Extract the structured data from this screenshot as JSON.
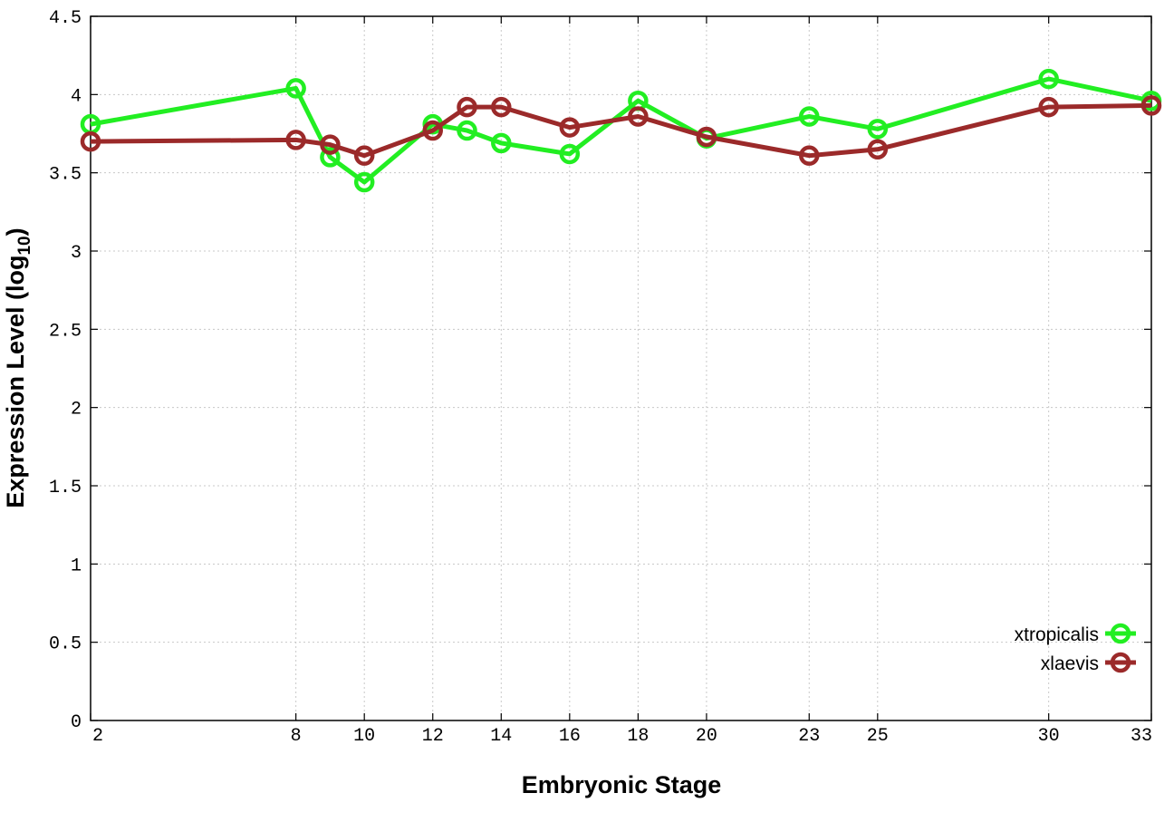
{
  "chart_data": {
    "type": "line",
    "xlabel": "Embryonic Stage",
    "ylabel_main": "Expression Level (log",
    "ylabel_sub": "10",
    "ylabel_close": ")",
    "xlim": [
      2,
      33
    ],
    "ylim": [
      0,
      4.5
    ],
    "x_ticks": [
      2,
      8,
      10,
      12,
      14,
      16,
      18,
      20,
      23,
      25,
      30,
      33
    ],
    "y_ticks": [
      "0",
      "0.5",
      "1",
      "1.5",
      "2",
      "2.5",
      "3",
      "3.5",
      "4",
      "4.5"
    ],
    "grid": true,
    "legend_position": "bottom-right",
    "series": [
      {
        "name": "xtropicalis",
        "color": "#22ee22",
        "x": [
          2,
          8,
          9,
          10,
          12,
          13,
          14,
          16,
          18,
          20,
          23,
          25,
          30,
          33
        ],
        "y": [
          3.81,
          4.04,
          3.6,
          3.44,
          3.81,
          3.77,
          3.69,
          3.62,
          3.96,
          3.72,
          3.86,
          3.78,
          4.1,
          3.96
        ]
      },
      {
        "name": "xlaevis",
        "color": "#9b2a2a",
        "x": [
          2,
          8,
          9,
          10,
          12,
          13,
          14,
          16,
          18,
          20,
          23,
          25,
          30,
          33
        ],
        "y": [
          3.7,
          3.71,
          3.68,
          3.61,
          3.77,
          3.92,
          3.92,
          3.79,
          3.86,
          3.73,
          3.61,
          3.65,
          3.92,
          3.93
        ]
      }
    ]
  }
}
